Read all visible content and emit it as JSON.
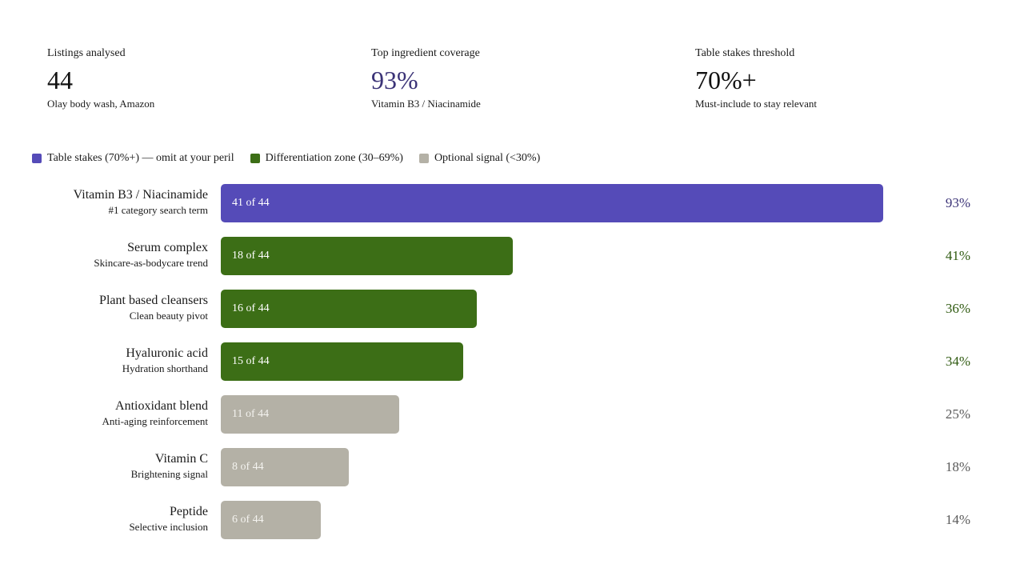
{
  "stats": [
    {
      "label": "Listings analysed",
      "value": "44",
      "sub": "Olay body wash, Amazon",
      "color": "#111111"
    },
    {
      "label": "Top ingredient coverage",
      "value": "93%",
      "sub": "Vitamin B3 / Niacinamide",
      "color": "#3b3377"
    },
    {
      "label": "Table stakes threshold",
      "value": "70%+",
      "sub": "Must-include to stay relevant",
      "color": "#111111"
    }
  ],
  "legend": [
    {
      "label": "Table stakes (70%+) — omit at your peril",
      "color": "#554bb8"
    },
    {
      "label": "Differentiation zone (30–69%)",
      "color": "#3c6e16"
    },
    {
      "label": "Optional signal (<30%)",
      "color": "#b4b1a6"
    }
  ],
  "chart_data": {
    "type": "bar",
    "orientation": "horizontal",
    "total": 44,
    "categories": [
      "Vitamin B3 / Niacinamide",
      "Serum complex",
      "Plant based cleansers",
      "Hyaluronic acid",
      "Antioxidant blend",
      "Vitamin C",
      "Peptide"
    ],
    "descriptions": [
      "#1 category search term",
      "Skincare-as-bodycare trend",
      "Clean beauty pivot",
      "Hydration shorthand",
      "Anti-aging reinforcement",
      "Brightening signal",
      "Selective inclusion"
    ],
    "counts": [
      41,
      18,
      16,
      15,
      11,
      8,
      6
    ],
    "count_labels": [
      "41 of 44",
      "18 of 44",
      "16 of 44",
      "15 of 44",
      "11 of 44",
      "8 of 44",
      "6 of 44"
    ],
    "bar_fill": [
      0.93,
      0.41,
      0.36,
      0.34,
      0.25,
      0.18,
      0.14
    ],
    "percent_labels": [
      "93%",
      "41%",
      "36%",
      "34%",
      "25%",
      "18%",
      "14%"
    ],
    "tiers": [
      "table-stakes",
      "differentiation",
      "differentiation",
      "differentiation",
      "optional",
      "optional",
      "optional"
    ],
    "tier_colors": {
      "table-stakes": "#554bb8",
      "differentiation": "#3c6e16",
      "optional": "#b4b1a6"
    },
    "pct_text_colors": {
      "table-stakes": "#3b3377",
      "differentiation": "#2f5a10",
      "optional": "#5a5a5a"
    }
  }
}
